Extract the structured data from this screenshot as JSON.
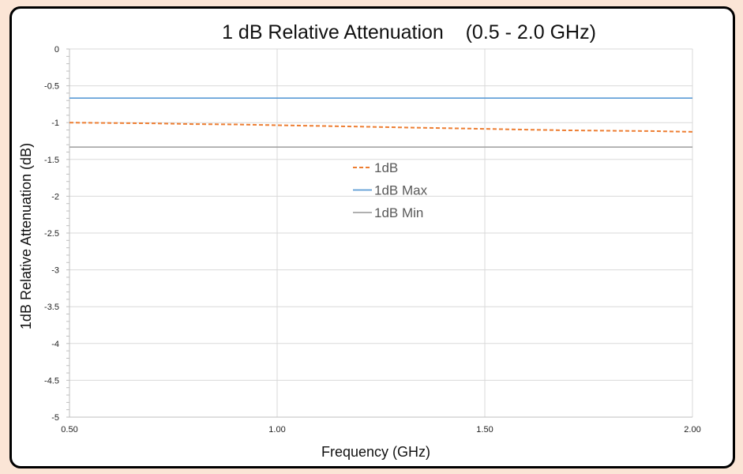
{
  "chart_data": {
    "type": "line",
    "title": "1 dB Relative Attenuation    (0.5 - 2.0 GHz)",
    "xlabel": "Frequency (GHz)",
    "ylabel": "1dB Relative Attenuation (dB)",
    "xlim": [
      0.5,
      2.0
    ],
    "ylim": [
      -5,
      0
    ],
    "x_ticks": [
      "0.50",
      "1.00",
      "1.50",
      "2.00"
    ],
    "y_ticks": [
      "0",
      "-0.5",
      "-1",
      "-1.5",
      "-2",
      "-2.5",
      "-3",
      "-3.5",
      "-4",
      "-4.5",
      "-5"
    ],
    "grid": true,
    "legend_position": "center",
    "series": [
      {
        "name": "1dB",
        "color": "#ed7d31",
        "dash": true,
        "x": [
          0.5,
          0.6,
          0.7,
          0.8,
          0.9,
          1.0,
          1.1,
          1.2,
          1.3,
          1.4,
          1.5,
          1.6,
          1.7,
          1.8,
          1.9,
          2.0
        ],
        "y": [
          -1.0,
          -1.005,
          -1.01,
          -1.02,
          -1.025,
          -1.035,
          -1.045,
          -1.055,
          -1.065,
          -1.075,
          -1.085,
          -1.095,
          -1.105,
          -1.11,
          -1.115,
          -1.125
        ]
      },
      {
        "name": "1dB Max",
        "color": "#5b9bd5",
        "dash": false,
        "x": [
          0.5,
          2.0
        ],
        "y": [
          -0.667,
          -0.667
        ]
      },
      {
        "name": "1dB Min",
        "color": "#a5a5a5",
        "dash": false,
        "x": [
          0.5,
          2.0
        ],
        "y": [
          -1.333,
          -1.333
        ]
      }
    ]
  }
}
